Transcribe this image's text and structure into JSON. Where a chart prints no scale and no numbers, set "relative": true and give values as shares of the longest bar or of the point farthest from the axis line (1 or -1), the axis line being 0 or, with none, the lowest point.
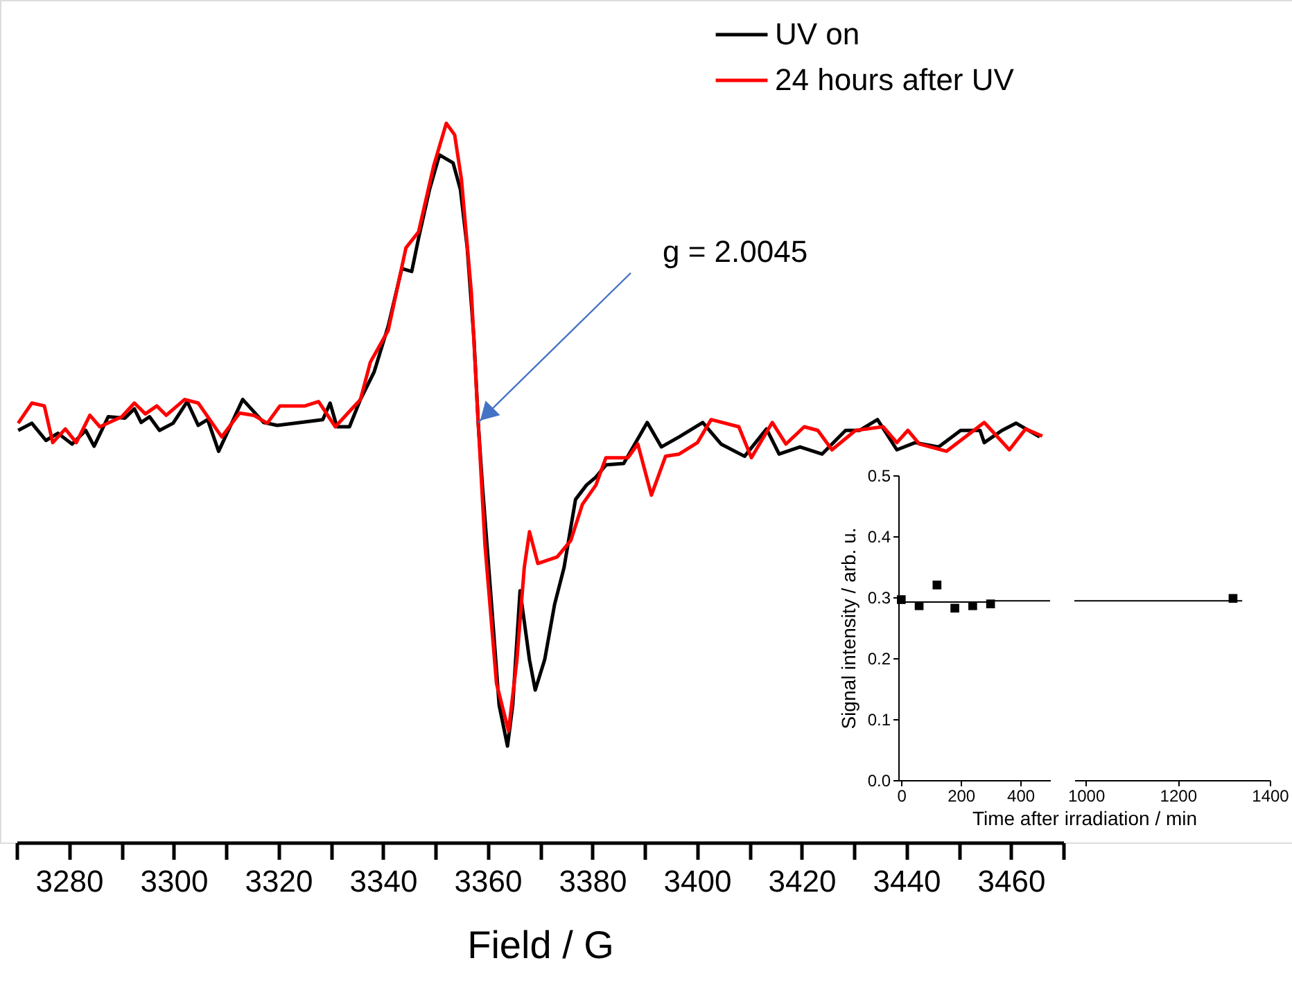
{
  "chart_data": [
    {
      "type": "line",
      "relative": true,
      "xlabel": "Field / G",
      "xlim": [
        3270,
        3470
      ],
      "xticks": [
        {
          "value": 3270,
          "label": null
        },
        3280,
        {
          "value": 3290,
          "label": null
        },
        3300,
        {
          "value": 3310,
          "label": null
        },
        3320,
        {
          "value": 3330,
          "label": null
        },
        3340,
        {
          "value": 3350,
          "label": null
        },
        3360,
        {
          "value": 3370,
          "label": null
        },
        3380,
        {
          "value": 3390,
          "label": null
        },
        3400,
        {
          "value": 3410,
          "label": null
        },
        3420,
        {
          "value": 3430,
          "label": null
        },
        3440,
        {
          "value": 3450,
          "label": null
        },
        3460,
        {
          "value": 3470,
          "label": null
        }
      ],
      "grid": false,
      "legend": "top right",
      "line_style": "solid",
      "annotations": [
        {
          "text": "g = 2.0045",
          "x": 3358.2,
          "y": 0.584
        }
      ],
      "series": [
        {
          "name": "UV on",
          "color": "#000000",
          "x": [
            3270.3,
            3272.9,
            3275.6,
            3277.9,
            3280.6,
            3283.2,
            3284.8,
            3287.5,
            3290.7,
            3292.5,
            3293.8,
            3295.4,
            3297.3,
            3299.9,
            3302.6,
            3304.7,
            3306.5,
            3308.6,
            3313.2,
            3317.2,
            3319.8,
            3324.3,
            3328.5,
            3329.9,
            3331.2,
            3333.6,
            3335.7,
            3338.3,
            3341.0,
            3343.6,
            3345.5,
            3346.8,
            3348.9,
            3350.8,
            3353.4,
            3354.8,
            3356.1,
            3357.4,
            3358.2,
            3359.0,
            3360.9,
            3362.2,
            3363.8,
            3364.8,
            3366.2,
            3368.0,
            3369.1,
            3370.9,
            3372.8,
            3374.6,
            3376.8,
            3378.9,
            3380.7,
            3382.6,
            3386.0,
            3390.5,
            3393.2,
            3396.6,
            3401.1,
            3404.6,
            3409.1,
            3413.3,
            3415.7,
            3419.7,
            3423.9,
            3428.4,
            3431.1,
            3434.5,
            3438.2,
            3441.7,
            3446.2,
            3450.4,
            3454.1,
            3454.9,
            3458.3,
            3461.0,
            3465.5
          ],
          "values": [
            0.573,
            0.583,
            0.559,
            0.569,
            0.554,
            0.573,
            0.551,
            0.592,
            0.59,
            0.603,
            0.584,
            0.592,
            0.573,
            0.583,
            0.613,
            0.58,
            0.588,
            0.544,
            0.616,
            0.584,
            0.58,
            0.584,
            0.588,
            0.611,
            0.578,
            0.578,
            0.616,
            0.654,
            0.718,
            0.798,
            0.794,
            0.84,
            0.908,
            0.956,
            0.945,
            0.908,
            0.827,
            0.699,
            0.584,
            0.497,
            0.317,
            0.191,
            0.134,
            0.191,
            0.35,
            0.254,
            0.212,
            0.254,
            0.331,
            0.382,
            0.477,
            0.497,
            0.508,
            0.525,
            0.527,
            0.584,
            0.55,
            0.564,
            0.584,
            0.554,
            0.537,
            0.575,
            0.54,
            0.55,
            0.54,
            0.573,
            0.573,
            0.588,
            0.546,
            0.556,
            0.55,
            0.573,
            0.573,
            0.556,
            0.573,
            0.583,
            0.564
          ]
        },
        {
          "name": "24 hours after UV",
          "color": "#ff0000",
          "x": [
            3270.3,
            3272.9,
            3275.3,
            3276.9,
            3279.3,
            3281.4,
            3284.0,
            3285.9,
            3290.1,
            3292.5,
            3294.6,
            3296.8,
            3298.6,
            3302.1,
            3304.7,
            3309.2,
            3312.6,
            3315.3,
            3317.9,
            3320.3,
            3325.1,
            3327.7,
            3330.9,
            3335.7,
            3337.6,
            3341.0,
            3344.4,
            3346.8,
            3349.7,
            3352.1,
            3353.7,
            3355.0,
            3356.9,
            3358.2,
            3359.5,
            3361.7,
            3364.0,
            3365.6,
            3367.0,
            3368.0,
            3369.6,
            3373.3,
            3375.9,
            3378.1,
            3380.7,
            3382.6,
            3386.8,
            3388.7,
            3391.3,
            3394.0,
            3396.6,
            3400.1,
            3402.7,
            3408.0,
            3410.4,
            3414.4,
            3417.0,
            3420.5,
            3423.1,
            3425.8,
            3430.3,
            3435.6,
            3438.2,
            3440.3,
            3442.5,
            3447.7,
            3450.4,
            3454.9,
            3459.7,
            3462.8,
            3466.0
          ],
          "values": [
            0.583,
            0.611,
            0.607,
            0.556,
            0.575,
            0.556,
            0.594,
            0.578,
            0.592,
            0.611,
            0.596,
            0.607,
            0.594,
            0.616,
            0.611,
            0.564,
            0.597,
            0.594,
            0.583,
            0.607,
            0.607,
            0.613,
            0.578,
            0.616,
            0.668,
            0.712,
            0.827,
            0.849,
            0.941,
            1.0,
            0.984,
            0.922,
            0.764,
            0.584,
            0.413,
            0.221,
            0.155,
            0.254,
            0.382,
            0.432,
            0.388,
            0.397,
            0.42,
            0.47,
            0.497,
            0.535,
            0.535,
            0.554,
            0.483,
            0.537,
            0.54,
            0.556,
            0.588,
            0.578,
            0.535,
            0.584,
            0.554,
            0.578,
            0.573,
            0.546,
            0.573,
            0.578,
            0.556,
            0.573,
            0.554,
            0.544,
            0.559,
            0.584,
            0.546,
            0.575,
            0.565
          ]
        }
      ]
    },
    {
      "type": "scatter",
      "xlabel": "Time after irradiation  / min",
      "ylabel": "Signal intensity / arb. u.",
      "xlim": [
        -10,
        500
      ],
      "xticks": [
        0,
        200,
        400
      ],
      "ylim": [
        0,
        0.5
      ],
      "yticks": [
        {
          "value": 0,
          "label": "0.0"
        },
        0.1,
        0.2,
        0.3,
        0.4,
        0.5
      ],
      "grid": false,
      "marker": "square",
      "series": [
        {
          "type": "scatter",
          "color": "#000000",
          "x": [
            0,
            60,
            120,
            180,
            240,
            300
          ],
          "values": [
            0.296,
            0.286,
            0.32,
            0.282,
            0.286,
            0.289
          ]
        },
        {
          "type": "line",
          "color": "#000000",
          "marker": "none",
          "x": [
            0,
            310
          ],
          "values": [
            0.292,
            0.292
          ]
        },
        {
          "type": "line",
          "color": "#000000",
          "marker": "none",
          "x": [
            310,
            500
          ],
          "values": [
            0.294,
            0.294
          ]
        }
      ]
    },
    {
      "type": "scatter",
      "xlim": [
        975,
        1400
      ],
      "xticks": [
        1000,
        1200,
        1400
      ],
      "ylim": [
        0,
        0.5
      ],
      "tick_labels": "x",
      "grid": false,
      "marker": "square",
      "series": [
        {
          "type": "scatter",
          "color": "#000000",
          "x": [
            1320
          ],
          "values": [
            0.298
          ]
        },
        {
          "type": "line",
          "color": "#000000",
          "marker": "none",
          "x": [
            975,
            1340
          ],
          "values": [
            0.294,
            0.294
          ]
        }
      ]
    }
  ]
}
